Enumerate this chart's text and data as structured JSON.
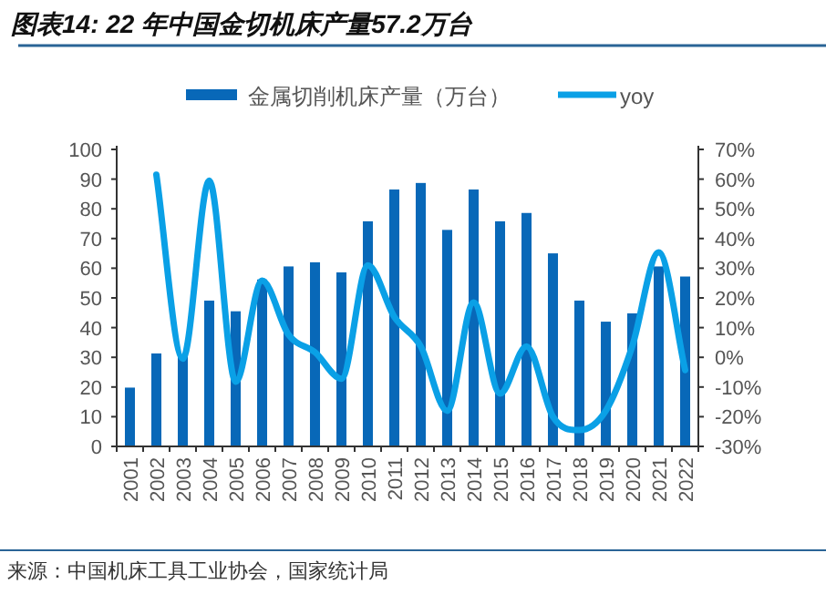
{
  "chart_data": {
    "type": "bar",
    "title": "图表14: 22 年中国金切机床产量57.2万台",
    "categories": [
      "2001",
      "2002",
      "2003",
      "2004",
      "2005",
      "2006",
      "2007",
      "2008",
      "2009",
      "2010",
      "2011",
      "2012",
      "2013",
      "2014",
      "2015",
      "2016",
      "2017",
      "2018",
      "2019",
      "2020",
      "2021",
      "2022"
    ],
    "series": [
      {
        "name": "金属切削机床产量（万台）",
        "color": "#0868b8",
        "values": [
          19.8,
          31.3,
          30.6,
          49.1,
          45.5,
          56.2,
          60.6,
          62,
          58.6,
          75.8,
          86.5,
          88.7,
          72.9,
          86.5,
          75.8,
          78.6,
          65,
          49.1,
          42,
          44.8,
          60.6,
          57.2
        ]
      },
      {
        "name": "yoy",
        "type": "line",
        "axis": "y2",
        "color": "#0aa0e6",
        "values": [
          null,
          61.5,
          -0.5,
          59.5,
          -8.2,
          25.8,
          7.6,
          1.7,
          -7.2,
          31,
          13.6,
          3.7,
          -18,
          18.5,
          -12.2,
          3.7,
          -20,
          -24.5,
          -18,
          3.7,
          35.3,
          -4.3
        ]
      }
    ],
    "ylim": [
      0,
      100
    ],
    "yticks": [
      0,
      10,
      20,
      30,
      40,
      50,
      60,
      70,
      80,
      90,
      100
    ],
    "y2lim": [
      -30,
      70
    ],
    "y2ticks": [
      {
        "value": -30,
        "label": "-30%"
      },
      {
        "value": -20,
        "label": "-20%"
      },
      {
        "value": -10,
        "label": "-10%"
      },
      {
        "value": 0,
        "label": "0%"
      },
      {
        "value": 10,
        "label": "10%"
      },
      {
        "value": 20,
        "label": "20%"
      },
      {
        "value": 30,
        "label": "30%"
      },
      {
        "value": 40,
        "label": "40%"
      },
      {
        "value": 50,
        "label": "50%"
      },
      {
        "value": 60,
        "label": "60%"
      },
      {
        "value": 70,
        "label": "70%"
      }
    ],
    "legend": "top",
    "grid": false,
    "annotations": [
      "来源：中国机床工具工业协会，国家统计局"
    ]
  }
}
